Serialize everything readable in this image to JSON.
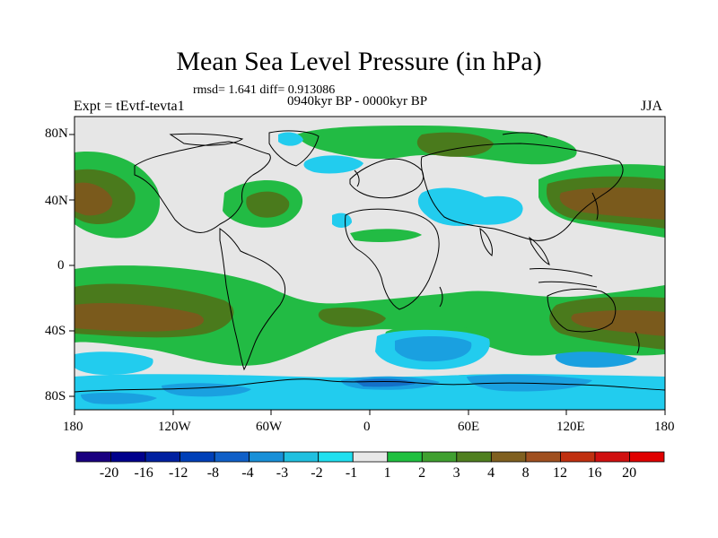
{
  "header": {
    "title": "Mean Sea Level Pressure (in hPa)",
    "stats": "rmsd= 1.641 diff= 0.913086",
    "experiment": "Expt = tEvtf-tevta1",
    "period": "0940kyr BP - 0000kyr BP",
    "season": "JJA"
  },
  "axes": {
    "y_ticks": [
      "80N",
      "40N",
      "0",
      "40S",
      "80S"
    ],
    "x_ticks": [
      "180",
      "120W",
      "60W",
      "0",
      "60E",
      "120E",
      "180"
    ]
  },
  "colorbar": {
    "labels": [
      "-20",
      "-16",
      "-12",
      "-8",
      "-4",
      "-3",
      "-2",
      "-1",
      "1",
      "2",
      "3",
      "4",
      "8",
      "12",
      "16",
      "20"
    ],
    "colors": [
      "#1a0080",
      "#00008c",
      "#0020a0",
      "#0040b8",
      "#1060c8",
      "#1890d8",
      "#20c0e0",
      "#20e0f0",
      "#e8e8e8",
      "#20c040",
      "#40a030",
      "#508020",
      "#806020",
      "#a05020",
      "#c03010",
      "#d01010",
      "#e00000"
    ]
  },
  "map_colors": {
    "background": "#e6e6e6",
    "green": "#22bb44",
    "olive": "#4a7a1c",
    "brown": "#7a5a1c",
    "cyan": "#22ccee",
    "light_blue": "#1aa0e0",
    "mid_blue": "#1470c8",
    "coast": "#000000"
  }
}
